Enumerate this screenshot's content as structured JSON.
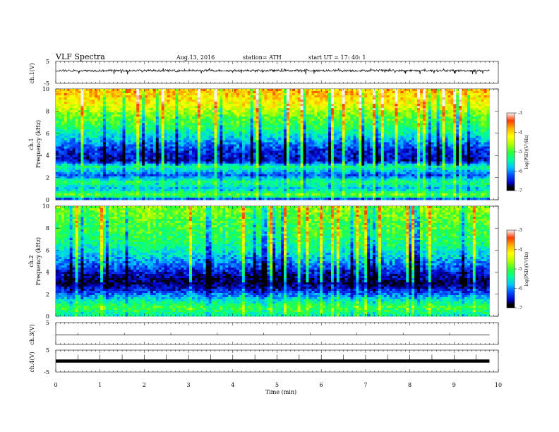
{
  "header": {
    "title": "VLF  Spectra",
    "date": "Aug.13, 2016",
    "station": "station= ATH",
    "start_ut": "start  UT  =    17: 40: 1"
  },
  "colors": {
    "scale": [
      "#000000",
      "#0000c8",
      "#0050ff",
      "#00c8ff",
      "#00ff96",
      "#32ff32",
      "#b4ff00",
      "#ffff00",
      "#ffb400",
      "#ff3c00",
      "#f5f5f5"
    ]
  },
  "chart_data": [
    {
      "type": "line",
      "ylabel": "ch.1(V)",
      "ylim": [
        -5,
        5
      ],
      "ytick_labels": [
        "5",
        "-5"
      ],
      "description_values": {
        "baseline": 0.8,
        "noise_range": [
          -1.0,
          2.0
        ]
      }
    },
    {
      "type": "heatmap",
      "ylabel": "ch.1\nFrequency  (kHz)",
      "ylabel_channel": "ch.1",
      "ylabel_quantity": "Frequency  (kHz)",
      "ylim": [
        0,
        10
      ],
      "ytick_labels": [
        "0",
        "2",
        "4",
        "6",
        "8",
        "10"
      ],
      "colorbar": {
        "label": "log(PSD)(V²/Hz)",
        "range": [
          -7,
          -3
        ],
        "tick_labels": [
          "-3",
          "-4",
          "-5",
          "-6",
          "-7"
        ]
      },
      "profile_log_psd_by_khz": [
        [
          0.0,
          -6.5
        ],
        [
          0.4,
          -4.8
        ],
        [
          1.0,
          -5.8
        ],
        [
          1.6,
          -5.2
        ],
        [
          2.2,
          -6.2
        ],
        [
          3.0,
          -5.3
        ],
        [
          3.5,
          -6.6
        ],
        [
          4.5,
          -6.4
        ],
        [
          5.5,
          -5.8
        ],
        [
          6.5,
          -5.2
        ],
        [
          7.5,
          -4.9
        ],
        [
          8.5,
          -4.3
        ],
        [
          10.0,
          -3.8
        ]
      ]
    },
    {
      "type": "heatmap",
      "ylabel": "ch.2\nFrequency  (kHz)",
      "ylabel_channel": "ch.2",
      "ylabel_quantity": "Frequency  (kHz)",
      "ylim": [
        0,
        10
      ],
      "ytick_labels": [
        "0",
        "2",
        "4",
        "6",
        "8",
        "10"
      ],
      "colorbar": {
        "label": "log(PSD)(V²/Hz)",
        "range": [
          -7,
          -3
        ],
        "tick_labels": [
          "-3",
          "-4",
          "-5",
          "-6",
          "-7"
        ]
      },
      "profile_log_psd_by_khz": [
        [
          0.0,
          -5.5
        ],
        [
          0.8,
          -5.0
        ],
        [
          1.5,
          -5.6
        ],
        [
          2.2,
          -6.3
        ],
        [
          3.0,
          -6.9
        ],
        [
          3.6,
          -6.7
        ],
        [
          4.5,
          -6.2
        ],
        [
          5.5,
          -5.7
        ],
        [
          6.5,
          -5.3
        ],
        [
          7.5,
          -5.1
        ],
        [
          8.5,
          -5.0
        ],
        [
          10.0,
          -4.7
        ]
      ]
    },
    {
      "type": "line",
      "ylabel": "ch.3(V)",
      "ylim": [
        -5,
        5
      ],
      "ytick_labels": [
        "5"
      ],
      "description_values": {
        "baseline": 0.0
      }
    },
    {
      "type": "line",
      "ylabel": "ch.4(V)",
      "ylim": [
        -5,
        5
      ],
      "ytick_labels": [
        "5",
        "-5"
      ],
      "description_values": {
        "baseline": 0.0
      }
    }
  ],
  "xaxis": {
    "label": "Time  (min)",
    "xlim": [
      0,
      10
    ],
    "data_end": 9.8,
    "tick_labels": [
      "0",
      "1",
      "2",
      "3",
      "4",
      "5",
      "6",
      "7",
      "8",
      "9",
      "10"
    ]
  }
}
